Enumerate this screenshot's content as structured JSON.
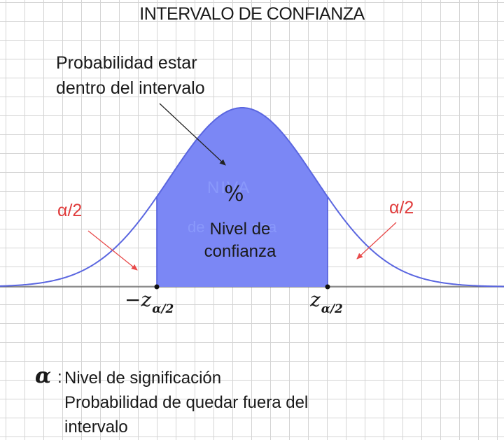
{
  "title": "INTERVALO DE CONFIANZA",
  "annotation_inside": {
    "line1": "Probabilidad estar",
    "line2": "dentro del intervalo"
  },
  "center_label": {
    "percent": "%",
    "line1": "Nivel de",
    "line2": "confianza"
  },
  "tail_labels": {
    "left": "α/2",
    "right": "α/2"
  },
  "critical_values": {
    "negative_sign": "−",
    "symbol": "z",
    "subscript": "α/2"
  },
  "legend": {
    "symbol": "α",
    "colon": ":",
    "definition": "Nivel de significación",
    "explanation_line1": "Probabilidad de quedar fuera del",
    "explanation_line2": "intervalo"
  },
  "colors": {
    "fill": "#7b87f5",
    "curve": "#5a66e0",
    "arrow": "#e84a4a",
    "axis": "#666666"
  }
}
